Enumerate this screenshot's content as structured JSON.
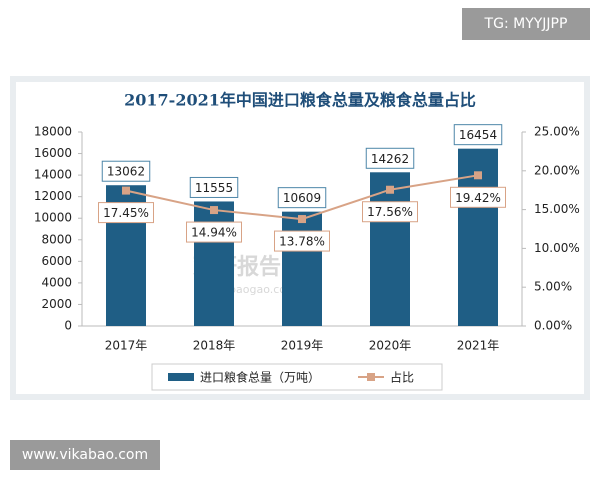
{
  "header": {
    "tag": "TG: MYYJJPP"
  },
  "footer": {
    "site": "www.vikabao.com"
  },
  "chart_data": {
    "type": "bar",
    "title": "2017-2021年中国进口粮食总量及粮食总量占比",
    "watermark": {
      "name": "观研报告网",
      "url": "chinabaogao.com"
    },
    "categories": [
      "2017年",
      "2018年",
      "2019年",
      "2020年",
      "2021年"
    ],
    "series": [
      {
        "name": "进口粮食总量（万吨）",
        "type": "bar",
        "color": "#1f5e85",
        "values": [
          13062,
          11555,
          10609,
          14262,
          16454
        ]
      },
      {
        "name": "占比",
        "type": "line",
        "axis": "y2",
        "color": "#d8a386",
        "values": [
          17.45,
          14.94,
          13.78,
          17.56,
          19.42
        ],
        "value_labels": [
          "17.45%",
          "14.94%",
          "13.78%",
          "17.56%",
          "19.42%"
        ]
      }
    ],
    "ylim": [
      0,
      18000
    ],
    "yticks": [
      0,
      2000,
      4000,
      6000,
      8000,
      10000,
      12000,
      14000,
      16000,
      18000
    ],
    "y2lim": [
      0,
      25
    ],
    "y2ticks": [
      {
        "value": 0,
        "label": "0.00%"
      },
      {
        "value": 5,
        "label": "5.00%"
      },
      {
        "value": 10,
        "label": "10.00%"
      },
      {
        "value": 15,
        "label": "15.00%"
      },
      {
        "value": 20,
        "label": "20.00%"
      },
      {
        "value": 25,
        "label": "25.00%"
      }
    ]
  }
}
